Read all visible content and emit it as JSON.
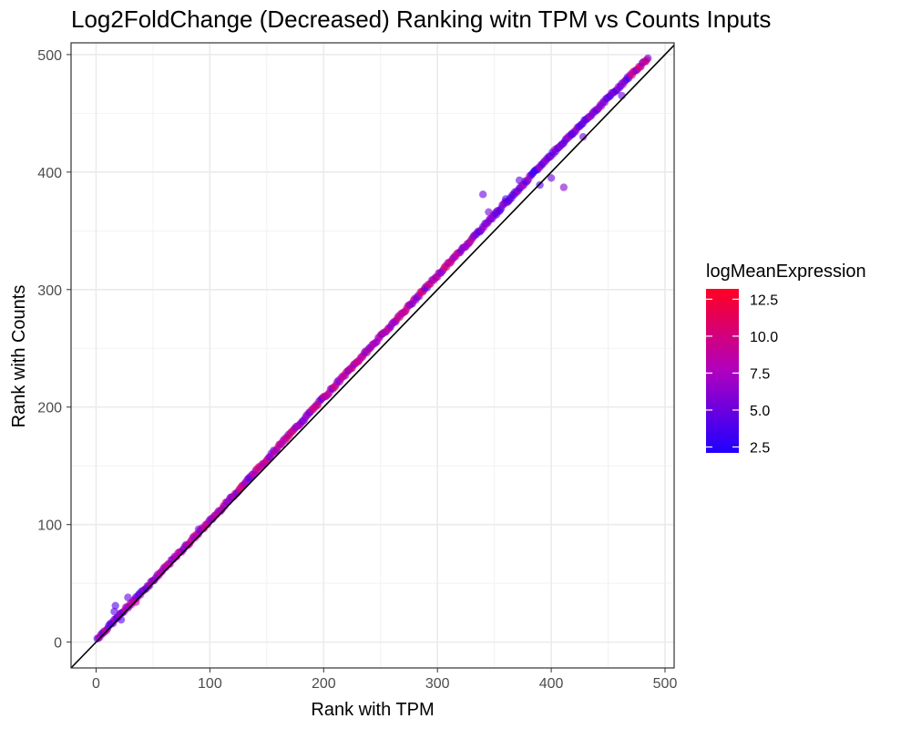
{
  "chart_data": {
    "type": "scatter",
    "title": "Log2FoldChange (Decreased) Ranking witn TPM vs Counts Inputs",
    "xlabel": "Rank with TPM",
    "ylabel": "Rank with Counts",
    "xlim": [
      -22,
      508
    ],
    "ylim": [
      -22,
      510
    ],
    "x_ticks": [
      0,
      100,
      200,
      300,
      400,
      500
    ],
    "y_ticks": [
      0,
      100,
      200,
      300,
      400,
      500
    ],
    "grid": true,
    "reference_line": {
      "type": "identity",
      "label": "y = x",
      "color": "#000000"
    },
    "point_summary": "Approx. 485 genes; ranks with counts closely follow ranks with TPM, with counts rank slightly higher (about 4% above x) across the range; a few outliers near x=340 and x=410.",
    "trend": {
      "x": [
        0,
        100,
        200,
        300,
        400,
        485
      ],
      "y": [
        2,
        103,
        208,
        312,
        415,
        497
      ]
    },
    "outliers": [
      {
        "x": 17,
        "y": 31,
        "c": 4.0
      },
      {
        "x": 16,
        "y": 26,
        "c": 4.5
      },
      {
        "x": 22,
        "y": 19,
        "c": 4.2
      },
      {
        "x": 28,
        "y": 38,
        "c": 5.0
      },
      {
        "x": 35,
        "y": 34,
        "c": 9.0
      },
      {
        "x": 90,
        "y": 96,
        "c": 6.0
      },
      {
        "x": 340,
        "y": 381,
        "c": 5.0
      },
      {
        "x": 345,
        "y": 366,
        "c": 5.5
      },
      {
        "x": 352,
        "y": 364,
        "c": 4.5
      },
      {
        "x": 360,
        "y": 377,
        "c": 3.5
      },
      {
        "x": 372,
        "y": 393,
        "c": 4.5
      },
      {
        "x": 390,
        "y": 389,
        "c": 4.0
      },
      {
        "x": 400,
        "y": 395,
        "c": 5.0
      },
      {
        "x": 411,
        "y": 387,
        "c": 6.0
      },
      {
        "x": 418,
        "y": 432,
        "c": 4.5
      },
      {
        "x": 428,
        "y": 430,
        "c": 5.0
      },
      {
        "x": 462,
        "y": 465,
        "c": 5.0
      }
    ],
    "colorbar": {
      "title": "logMeanExpression",
      "range": [
        2.1,
        13.2
      ],
      "low_color": "#1f00ff",
      "mid_color": "#b000c0",
      "high_color": "#ff0022",
      "ticks": [
        2.5,
        5.0,
        7.5,
        10.0,
        12.5
      ],
      "tick_labels": [
        "2.5",
        "5.0",
        "7.5",
        "10.0",
        "12.5"
      ]
    }
  }
}
